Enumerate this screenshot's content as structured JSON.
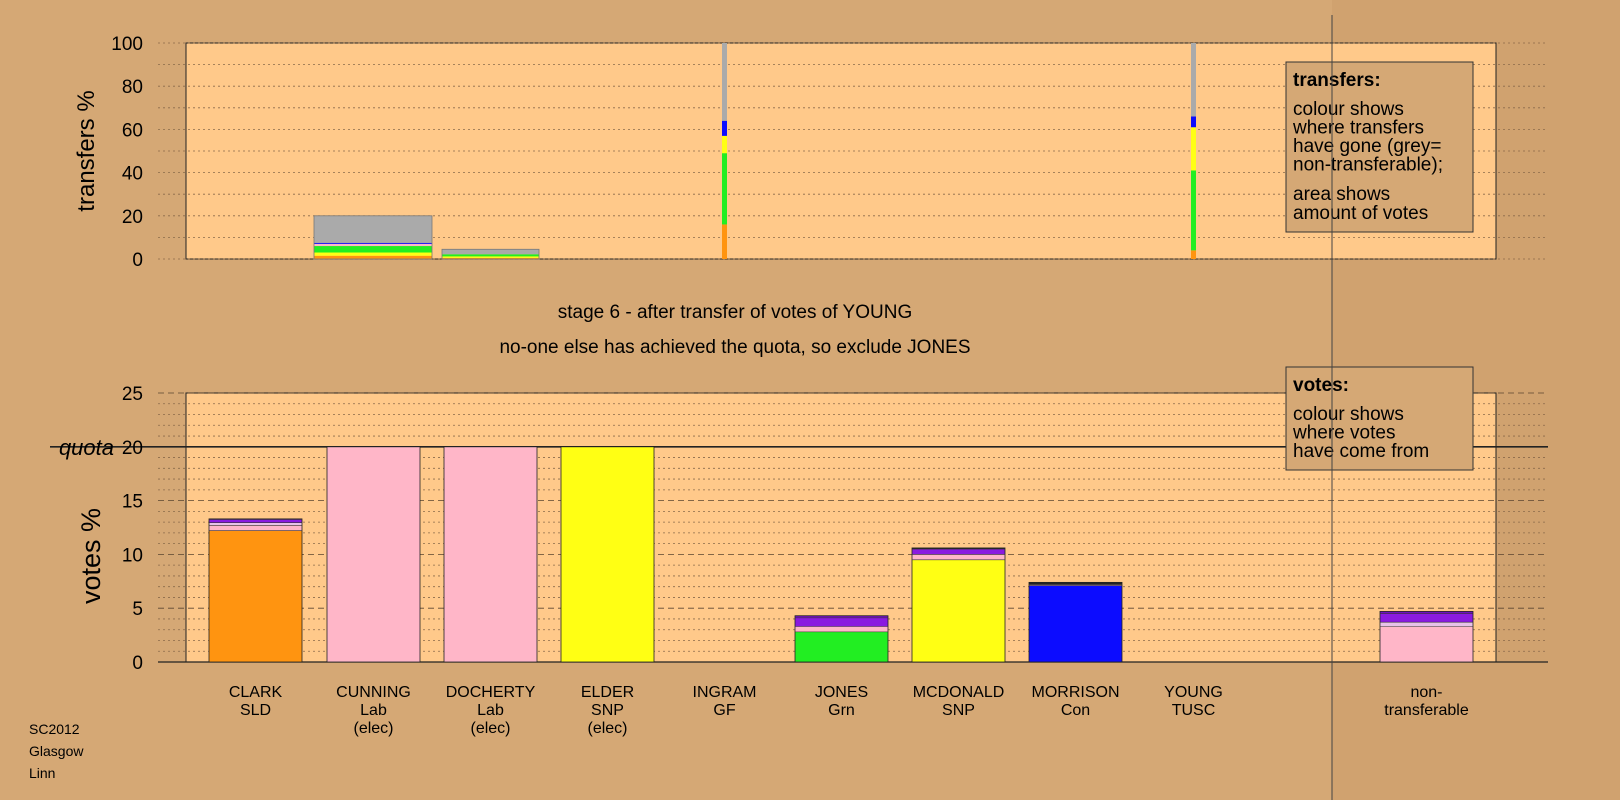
{
  "chart_data": [
    {
      "type": "bar",
      "stacked": true,
      "name_role": "transfers",
      "ylabel": "transfers %",
      "ylim": [
        0,
        100
      ],
      "yticks": [
        0,
        20,
        40,
        60,
        80,
        100
      ],
      "grid": true,
      "columns": [
        {
          "key": "CLARK",
          "segments": [],
          "width_share": 0
        },
        {
          "key": "CUNNING",
          "segments": [
            {
              "color": "#ff9410",
              "value": 1.5
            },
            {
              "color": "#ffff14",
              "value": 1.5
            },
            {
              "color": "#22ee22",
              "value": 3
            },
            {
              "color": "#ffb6c8",
              "value": 1
            },
            {
              "color": "#0c0cff",
              "value": 0.5
            },
            {
              "color": "#aaaaaa",
              "value": 12.5
            }
          ]
        },
        {
          "key": "DOCHERTY",
          "segments": [
            {
              "color": "#ff9410",
              "value": 0.5
            },
            {
              "color": "#ffff14",
              "value": 0.7
            },
            {
              "color": "#22ee22",
              "value": 1
            },
            {
              "color": "#aaaaaa",
              "value": 2.3
            }
          ]
        },
        {
          "key": "ELDER",
          "segments": []
        },
        {
          "key": "INGRAM",
          "thin": true,
          "segments": [
            {
              "color": "#ff9410",
              "value": 16
            },
            {
              "color": "#22ee22",
              "value": 33
            },
            {
              "color": "#ffff14",
              "value": 8
            },
            {
              "color": "#0c0cff",
              "value": 7
            },
            {
              "color": "#aaaaaa",
              "value": 36
            }
          ]
        },
        {
          "key": "JONES",
          "segments": []
        },
        {
          "key": "MCDONALD",
          "segments": []
        },
        {
          "key": "MORRISON",
          "segments": []
        },
        {
          "key": "YOUNG",
          "thin": true,
          "segments": [
            {
              "color": "#ff9410",
              "value": 4
            },
            {
              "color": "#22ee22",
              "value": 37
            },
            {
              "color": "#ffff14",
              "value": 20
            },
            {
              "color": "#0c0cff",
              "value": 5
            },
            {
              "color": "#aaaaaa",
              "value": 34
            }
          ]
        },
        {
          "key": "non-transferable",
          "segments": []
        }
      ],
      "legend_box": {
        "title": "transfers:",
        "lines_a": [
          "colour shows",
          "where transfers",
          "have gone (grey=",
          "non-transferable);"
        ],
        "lines_b": [
          "area shows",
          "amount of votes"
        ]
      }
    },
    {
      "type": "bar",
      "stacked": true,
      "name_role": "votes",
      "ylabel": "votes %",
      "ylim": [
        0,
        25
      ],
      "yticks": [
        0,
        5,
        10,
        15,
        20,
        25
      ],
      "quota": 20,
      "quota_label": "quota",
      "grid": true,
      "categories": [
        {
          "key": "CLARK",
          "lines": [
            "CLARK",
            "SLD"
          ]
        },
        {
          "key": "CUNNING",
          "lines": [
            "CUNNING",
            "Lab",
            "(elec)"
          ]
        },
        {
          "key": "DOCHERTY",
          "lines": [
            "DOCHERTY",
            "Lab",
            "(elec)"
          ]
        },
        {
          "key": "ELDER",
          "lines": [
            "ELDER",
            "SNP",
            "(elec)"
          ]
        },
        {
          "key": "INGRAM",
          "lines": [
            "INGRAM",
            "GF"
          ]
        },
        {
          "key": "JONES",
          "lines": [
            "JONES",
            "Grn"
          ]
        },
        {
          "key": "MCDONALD",
          "lines": [
            "MCDONALD",
            "SNP"
          ]
        },
        {
          "key": "MORRISON",
          "lines": [
            "MORRISON",
            "Con"
          ]
        },
        {
          "key": "YOUNG",
          "lines": [
            "YOUNG",
            "TUSC"
          ]
        },
        {
          "key": "non-transferable",
          "lines": [
            "non-",
            "transferable"
          ]
        }
      ],
      "series_values": [
        [
          {
            "color": "#ff9410",
            "value": 12.2
          },
          {
            "color": "#ffb6c8",
            "value": 0.5
          },
          {
            "color": "#e8c2e8",
            "value": 0.25
          },
          {
            "color": "#8a1ae0",
            "value": 0.3
          },
          {
            "color": "#222222",
            "value": 0.05
          }
        ],
        [
          {
            "color": "#ffb6c8",
            "value": 20
          }
        ],
        [
          {
            "color": "#ffb6c8",
            "value": 20
          }
        ],
        [
          {
            "color": "#ffff14",
            "value": 20
          }
        ],
        [],
        [
          {
            "color": "#22ee22",
            "value": 2.8
          },
          {
            "color": "#ffb6c8",
            "value": 0.5
          },
          {
            "color": "#8a1ae0",
            "value": 0.8
          },
          {
            "color": "#7010c0",
            "value": 0.2
          }
        ],
        [
          {
            "color": "#ffff14",
            "value": 9.5
          },
          {
            "color": "#ffb6c8",
            "value": 0.5
          },
          {
            "color": "#8a1ae0",
            "value": 0.5
          },
          {
            "color": "#222222",
            "value": 0.1
          }
        ],
        [
          {
            "color": "#0c0cff",
            "value": 7.1
          },
          {
            "color": "#ffb6c8",
            "value": 0.1
          },
          {
            "color": "#222222",
            "value": 0.2
          }
        ],
        [],
        [
          {
            "color": "#ffb6c8",
            "value": 3.3
          },
          {
            "color": "#e8c2e8",
            "value": 0.4
          },
          {
            "color": "#8a1ae0",
            "value": 0.8
          },
          {
            "color": "#7010c0",
            "value": 0.2
          }
        ]
      ],
      "legend_box": {
        "title": "votes:",
        "lines_a": [
          "colour shows",
          "where votes",
          "have come from"
        ]
      }
    }
  ],
  "stage_title": "stage 6 - after transfer of votes of YOUNG",
  "stage_subtitle": "no-one else has achieved the quota, so exclude JONES",
  "footer": {
    "line1": "SC2012",
    "line2": "Glasgow",
    "line3": "Linn"
  }
}
